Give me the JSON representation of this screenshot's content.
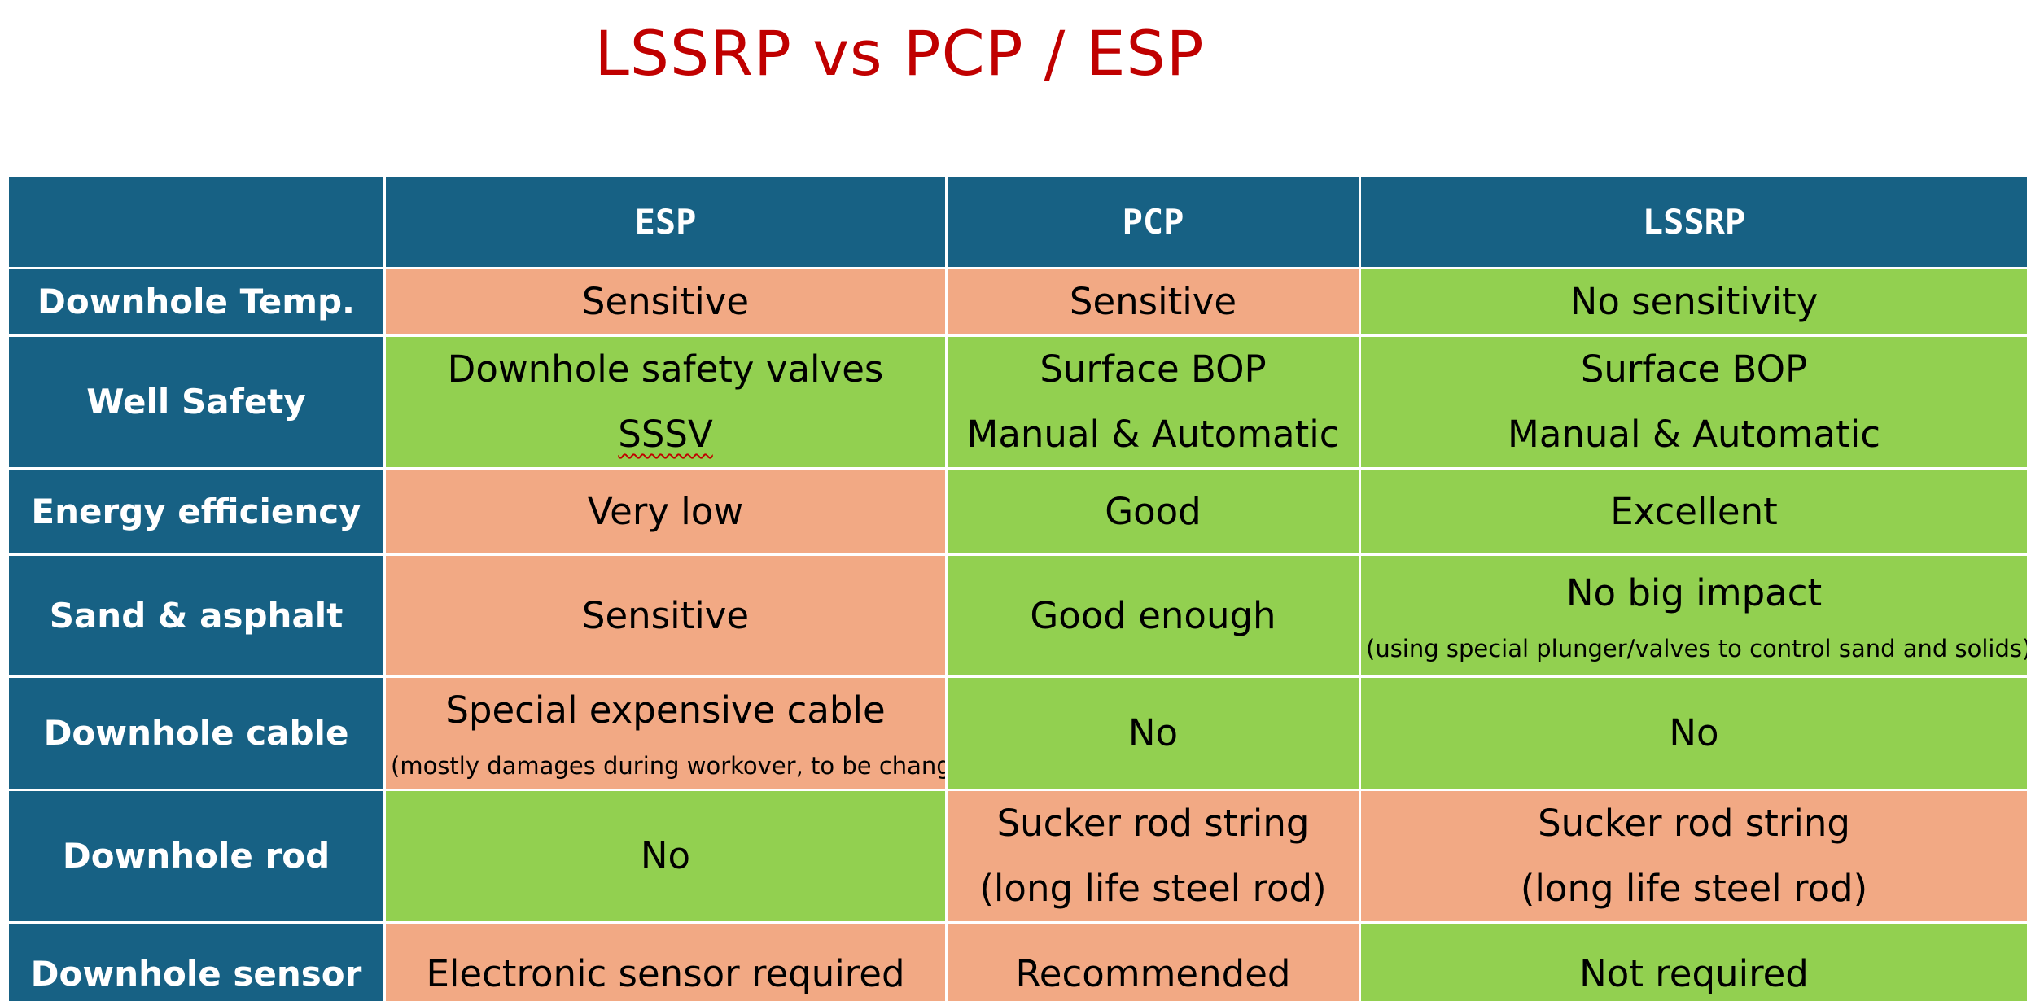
{
  "title": "LSSRP vs PCP / ESP",
  "columns": [
    "",
    "ESP",
    "PCP",
    "LSSRP"
  ],
  "colors": {
    "header_bg": "#176184",
    "header_text": "#ffffff",
    "favorable": "#92d050",
    "unfavorable": "#f2a984",
    "title": "#c00000"
  },
  "rows": [
    {
      "label": "Downhole Temp.",
      "cells": [
        {
          "line1": "Sensitive",
          "status": "unfavorable"
        },
        {
          "line1": "Sensitive",
          "status": "unfavorable"
        },
        {
          "line1": "No sensitivity",
          "status": "favorable"
        }
      ]
    },
    {
      "label": "Well Safety",
      "cells": [
        {
          "line1": "Downhole safety valves",
          "line2": "SSSV",
          "status": "favorable"
        },
        {
          "line1": "Surface BOP",
          "line2": "Manual & Automatic",
          "status": "favorable"
        },
        {
          "line1": "Surface BOP",
          "line2": "Manual & Automatic",
          "status": "favorable"
        }
      ]
    },
    {
      "label": "Energy efficiency",
      "cells": [
        {
          "line1": "Very low",
          "status": "unfavorable"
        },
        {
          "line1": "Good",
          "status": "favorable"
        },
        {
          "line1": "Excellent",
          "status": "favorable"
        }
      ]
    },
    {
      "label": "Sand & asphalt",
      "cells": [
        {
          "line1": "Sensitive",
          "status": "unfavorable"
        },
        {
          "line1": "Good enough",
          "status": "favorable"
        },
        {
          "line1": "No big impact",
          "note": "(using special plunger/valves to control sand and solids)",
          "status": "favorable"
        }
      ]
    },
    {
      "label": "Downhole cable",
      "cells": [
        {
          "line1": "Special expensive cable",
          "note": "(mostly damages during workover, to be changed)",
          "status": "unfavorable"
        },
        {
          "line1": "No",
          "status": "favorable"
        },
        {
          "line1": "No",
          "status": "favorable"
        }
      ]
    },
    {
      "label": "Downhole rod",
      "cells": [
        {
          "line1": "No",
          "status": "favorable"
        },
        {
          "line1": "Sucker rod string",
          "line2": "(long life steel rod)",
          "status": "unfavorable"
        },
        {
          "line1": "Sucker rod string",
          "line2": "(long life steel rod)",
          "status": "unfavorable"
        }
      ]
    },
    {
      "label": "Downhole sensor",
      "cells": [
        {
          "line1": "Electronic sensor required",
          "status": "unfavorable"
        },
        {
          "line1": "Recommended",
          "status": "unfavorable"
        },
        {
          "line1": "Not required",
          "status": "favorable"
        }
      ]
    }
  ]
}
